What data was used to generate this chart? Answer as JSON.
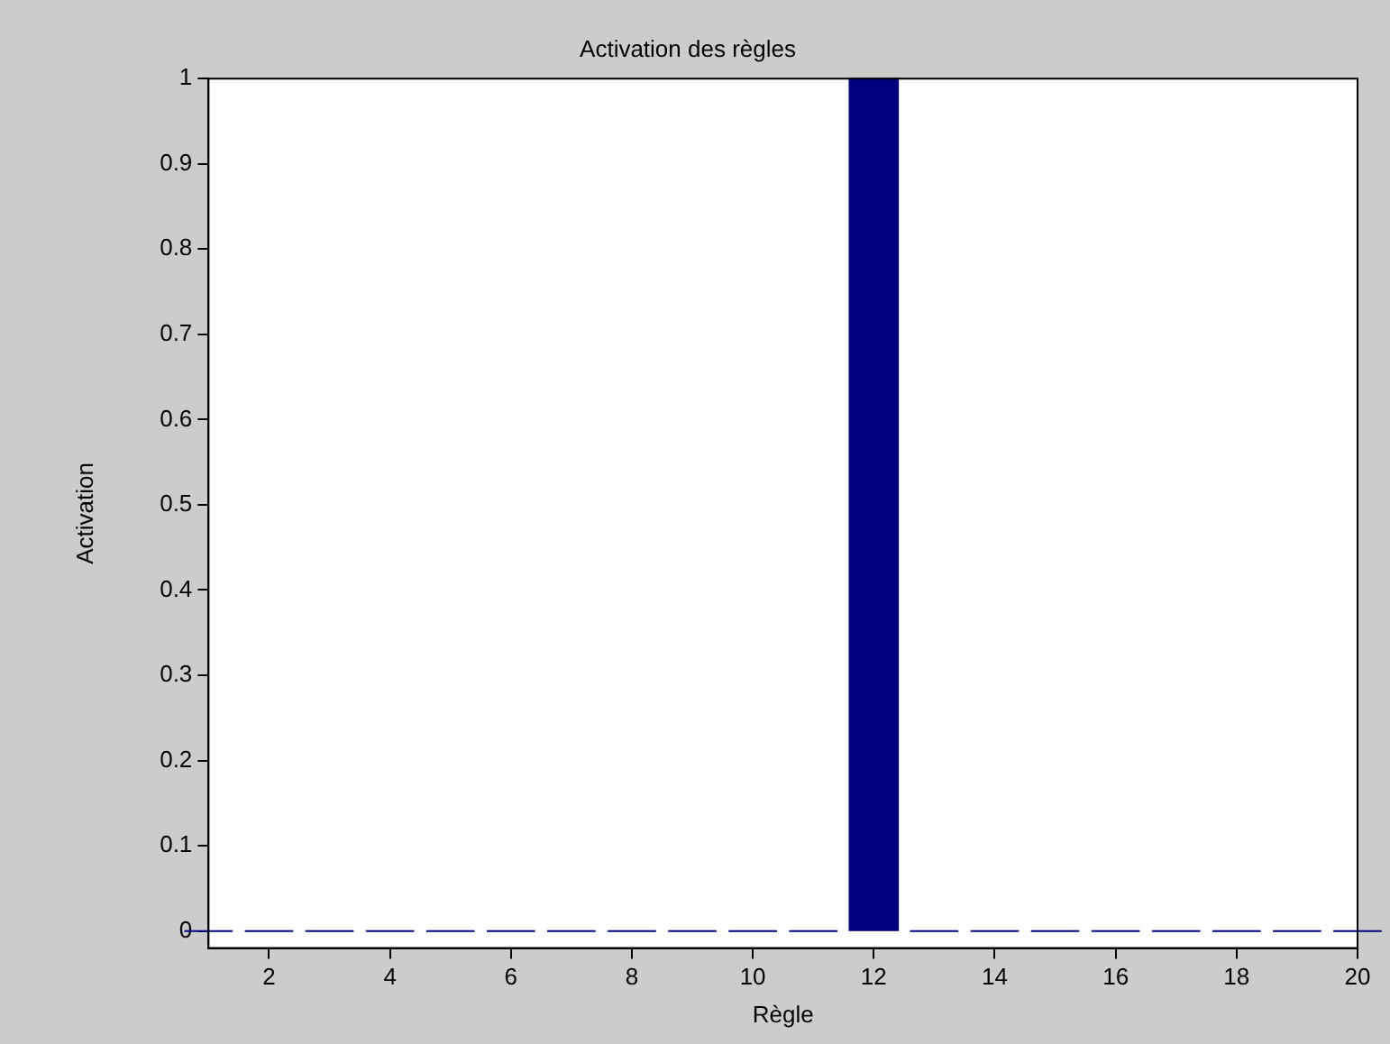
{
  "chart_data": {
    "type": "bar",
    "title": "Activation des règles",
    "xlabel": "Règle",
    "ylabel": "Activation",
    "x": [
      1,
      2,
      3,
      4,
      5,
      6,
      7,
      8,
      9,
      10,
      11,
      12,
      13,
      14,
      15,
      16,
      17,
      18,
      19,
      20
    ],
    "values": [
      0,
      0,
      0,
      0,
      0,
      0,
      0,
      0,
      0,
      0,
      0,
      1,
      0,
      0,
      0,
      0,
      0,
      0,
      0,
      0
    ],
    "color": "#000080",
    "xlim": [
      1,
      20
    ],
    "xticks": [
      2,
      4,
      6,
      8,
      10,
      12,
      14,
      16,
      18,
      20
    ],
    "ylim": [
      -0.02,
      1
    ],
    "yticks": [
      0,
      0.1,
      0.2,
      0.3,
      0.4,
      0.5,
      0.6,
      0.7,
      0.8,
      0.9,
      1
    ],
    "grid": false,
    "legend": false
  }
}
